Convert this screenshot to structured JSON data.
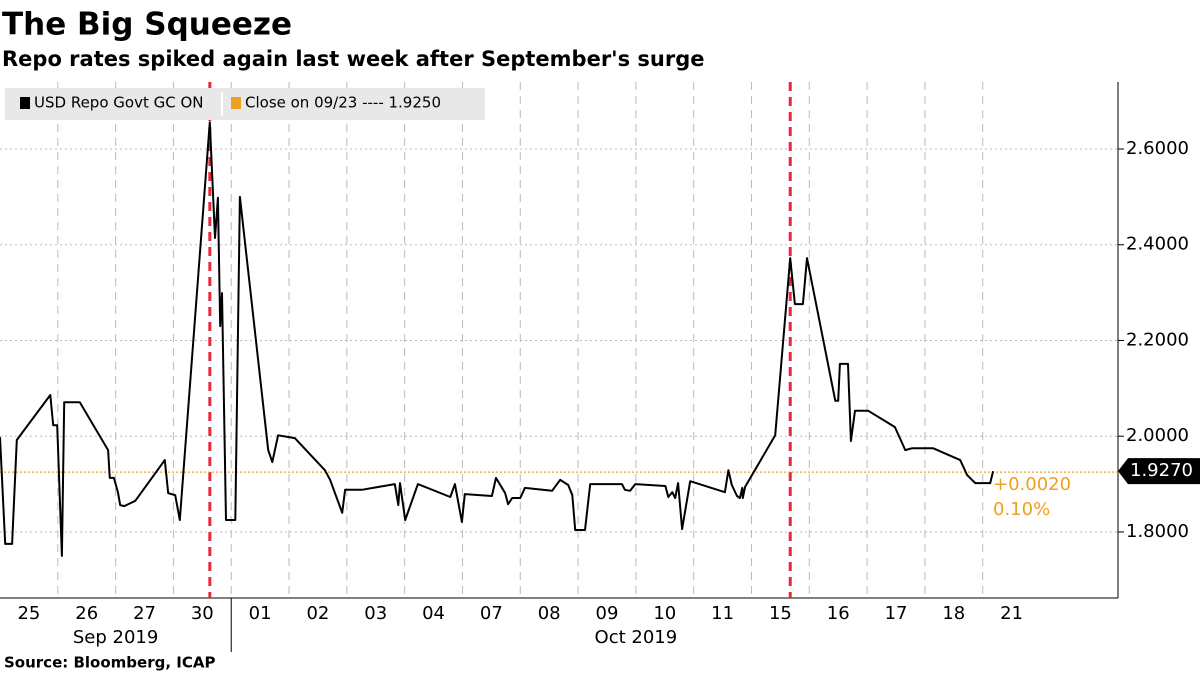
{
  "title": "The Big Squeeze",
  "subtitle": "Repo rates spiked again last week after September's surge",
  "source": "Source: Bloomberg, ICAP",
  "chart_data": {
    "type": "line",
    "categories": [
      "25",
      "26",
      "27",
      "30",
      "01",
      "02",
      "03",
      "04",
      "07",
      "08",
      "09",
      "10",
      "11",
      "15",
      "16",
      "17",
      "18",
      "21"
    ],
    "months": [
      {
        "label": "Sep 2019",
        "from": 0,
        "to": 4
      },
      {
        "label": "Oct 2019",
        "from": 4,
        "to": 18
      }
    ],
    "xlim": [
      0,
      19.34
    ],
    "ylim": [
      1.662,
      2.74
    ],
    "yticks": [
      {
        "value": 1.8,
        "label": "1.8000"
      },
      {
        "value": 2.0,
        "label": "2.0000"
      },
      {
        "value": 2.2,
        "label": "2.2000"
      },
      {
        "value": 2.4,
        "label": "2.4000"
      },
      {
        "value": 2.6,
        "label": "2.6000"
      }
    ],
    "grid": true,
    "highlight_x": [
      3.63,
      13.67
    ],
    "highlight_color": "#e8283c",
    "series": [
      {
        "name": "USD Repo Govt GC ON",
        "color": "#000000",
        "x": [
          0,
          0.09,
          0.21,
          0.29,
          0.87,
          0.92,
          0.99,
          1.07,
          1.11,
          1.38,
          1.87,
          1.9,
          1.97,
          2.04,
          2.08,
          2.15,
          2.34,
          2.85,
          2.91,
          3.03,
          3.11,
          3.63,
          3.72,
          3.77,
          3.81,
          3.84,
          3.91,
          4.07,
          4.15,
          4.64,
          4.71,
          4.81,
          5.1,
          5.62,
          5.71,
          5.92,
          5.97,
          6.26,
          6.83,
          6.89,
          6.92,
          7.01,
          7.23,
          7.79,
          7.87,
          7.99,
          8.04,
          8.51,
          8.58,
          8.74,
          8.79,
          8.86,
          9.0,
          9.08,
          9.55,
          9.69,
          9.83,
          9.9,
          9.95,
          10.12,
          10.21,
          10.76,
          10.81,
          10.9,
          10.99,
          11.51,
          11.56,
          11.63,
          11.68,
          11.73,
          11.8,
          11.94,
          12.54,
          12.6,
          12.66,
          12.75,
          12.8,
          12.84,
          12.85,
          12.89,
          13.41,
          13.67,
          13.75,
          13.89,
          13.96,
          14.45,
          14.5,
          14.53,
          14.67,
          14.72,
          14.79,
          15.02,
          15.48,
          15.66,
          15.78,
          16.14,
          16.61,
          16.73,
          16.87,
          17.13,
          17.18
        ],
        "values": [
          1.998,
          1.775,
          1.775,
          1.992,
          2.086,
          2.023,
          2.023,
          1.75,
          2.071,
          2.071,
          1.971,
          1.913,
          1.913,
          1.883,
          1.856,
          1.854,
          1.865,
          1.95,
          1.881,
          1.877,
          1.825,
          2.656,
          2.414,
          2.498,
          2.23,
          2.299,
          1.825,
          1.825,
          2.5,
          1.971,
          1.946,
          2.002,
          1.996,
          1.929,
          1.909,
          1.84,
          1.888,
          1.888,
          1.9,
          1.856,
          1.902,
          1.825,
          1.9,
          1.873,
          1.9,
          1.821,
          1.879,
          1.875,
          1.913,
          1.881,
          1.858,
          1.871,
          1.871,
          1.892,
          1.886,
          1.909,
          1.898,
          1.877,
          1.804,
          1.804,
          1.9,
          1.9,
          1.888,
          1.886,
          1.9,
          1.896,
          1.873,
          1.883,
          1.871,
          1.902,
          1.806,
          1.906,
          1.883,
          1.929,
          1.898,
          1.875,
          1.871,
          1.892,
          1.871,
          1.894,
          2.002,
          2.372,
          2.276,
          2.276,
          2.372,
          2.074,
          2.074,
          2.151,
          2.151,
          1.99,
          2.053,
          2.053,
          2.019,
          1.971,
          1.975,
          1.975,
          1.95,
          1.919,
          1.902,
          1.902,
          1.927
        ]
      }
    ],
    "reference_line": {
      "label": "Close on 09/23 ---- 1.9250",
      "value": 1.925,
      "color": "#f0a020"
    },
    "last_value": {
      "value": 1.927,
      "label": "1.9270"
    },
    "change": {
      "value": 0.002,
      "label": "+0.0020"
    },
    "change_pct": {
      "value": 0.1,
      "label": "0.10%"
    }
  }
}
